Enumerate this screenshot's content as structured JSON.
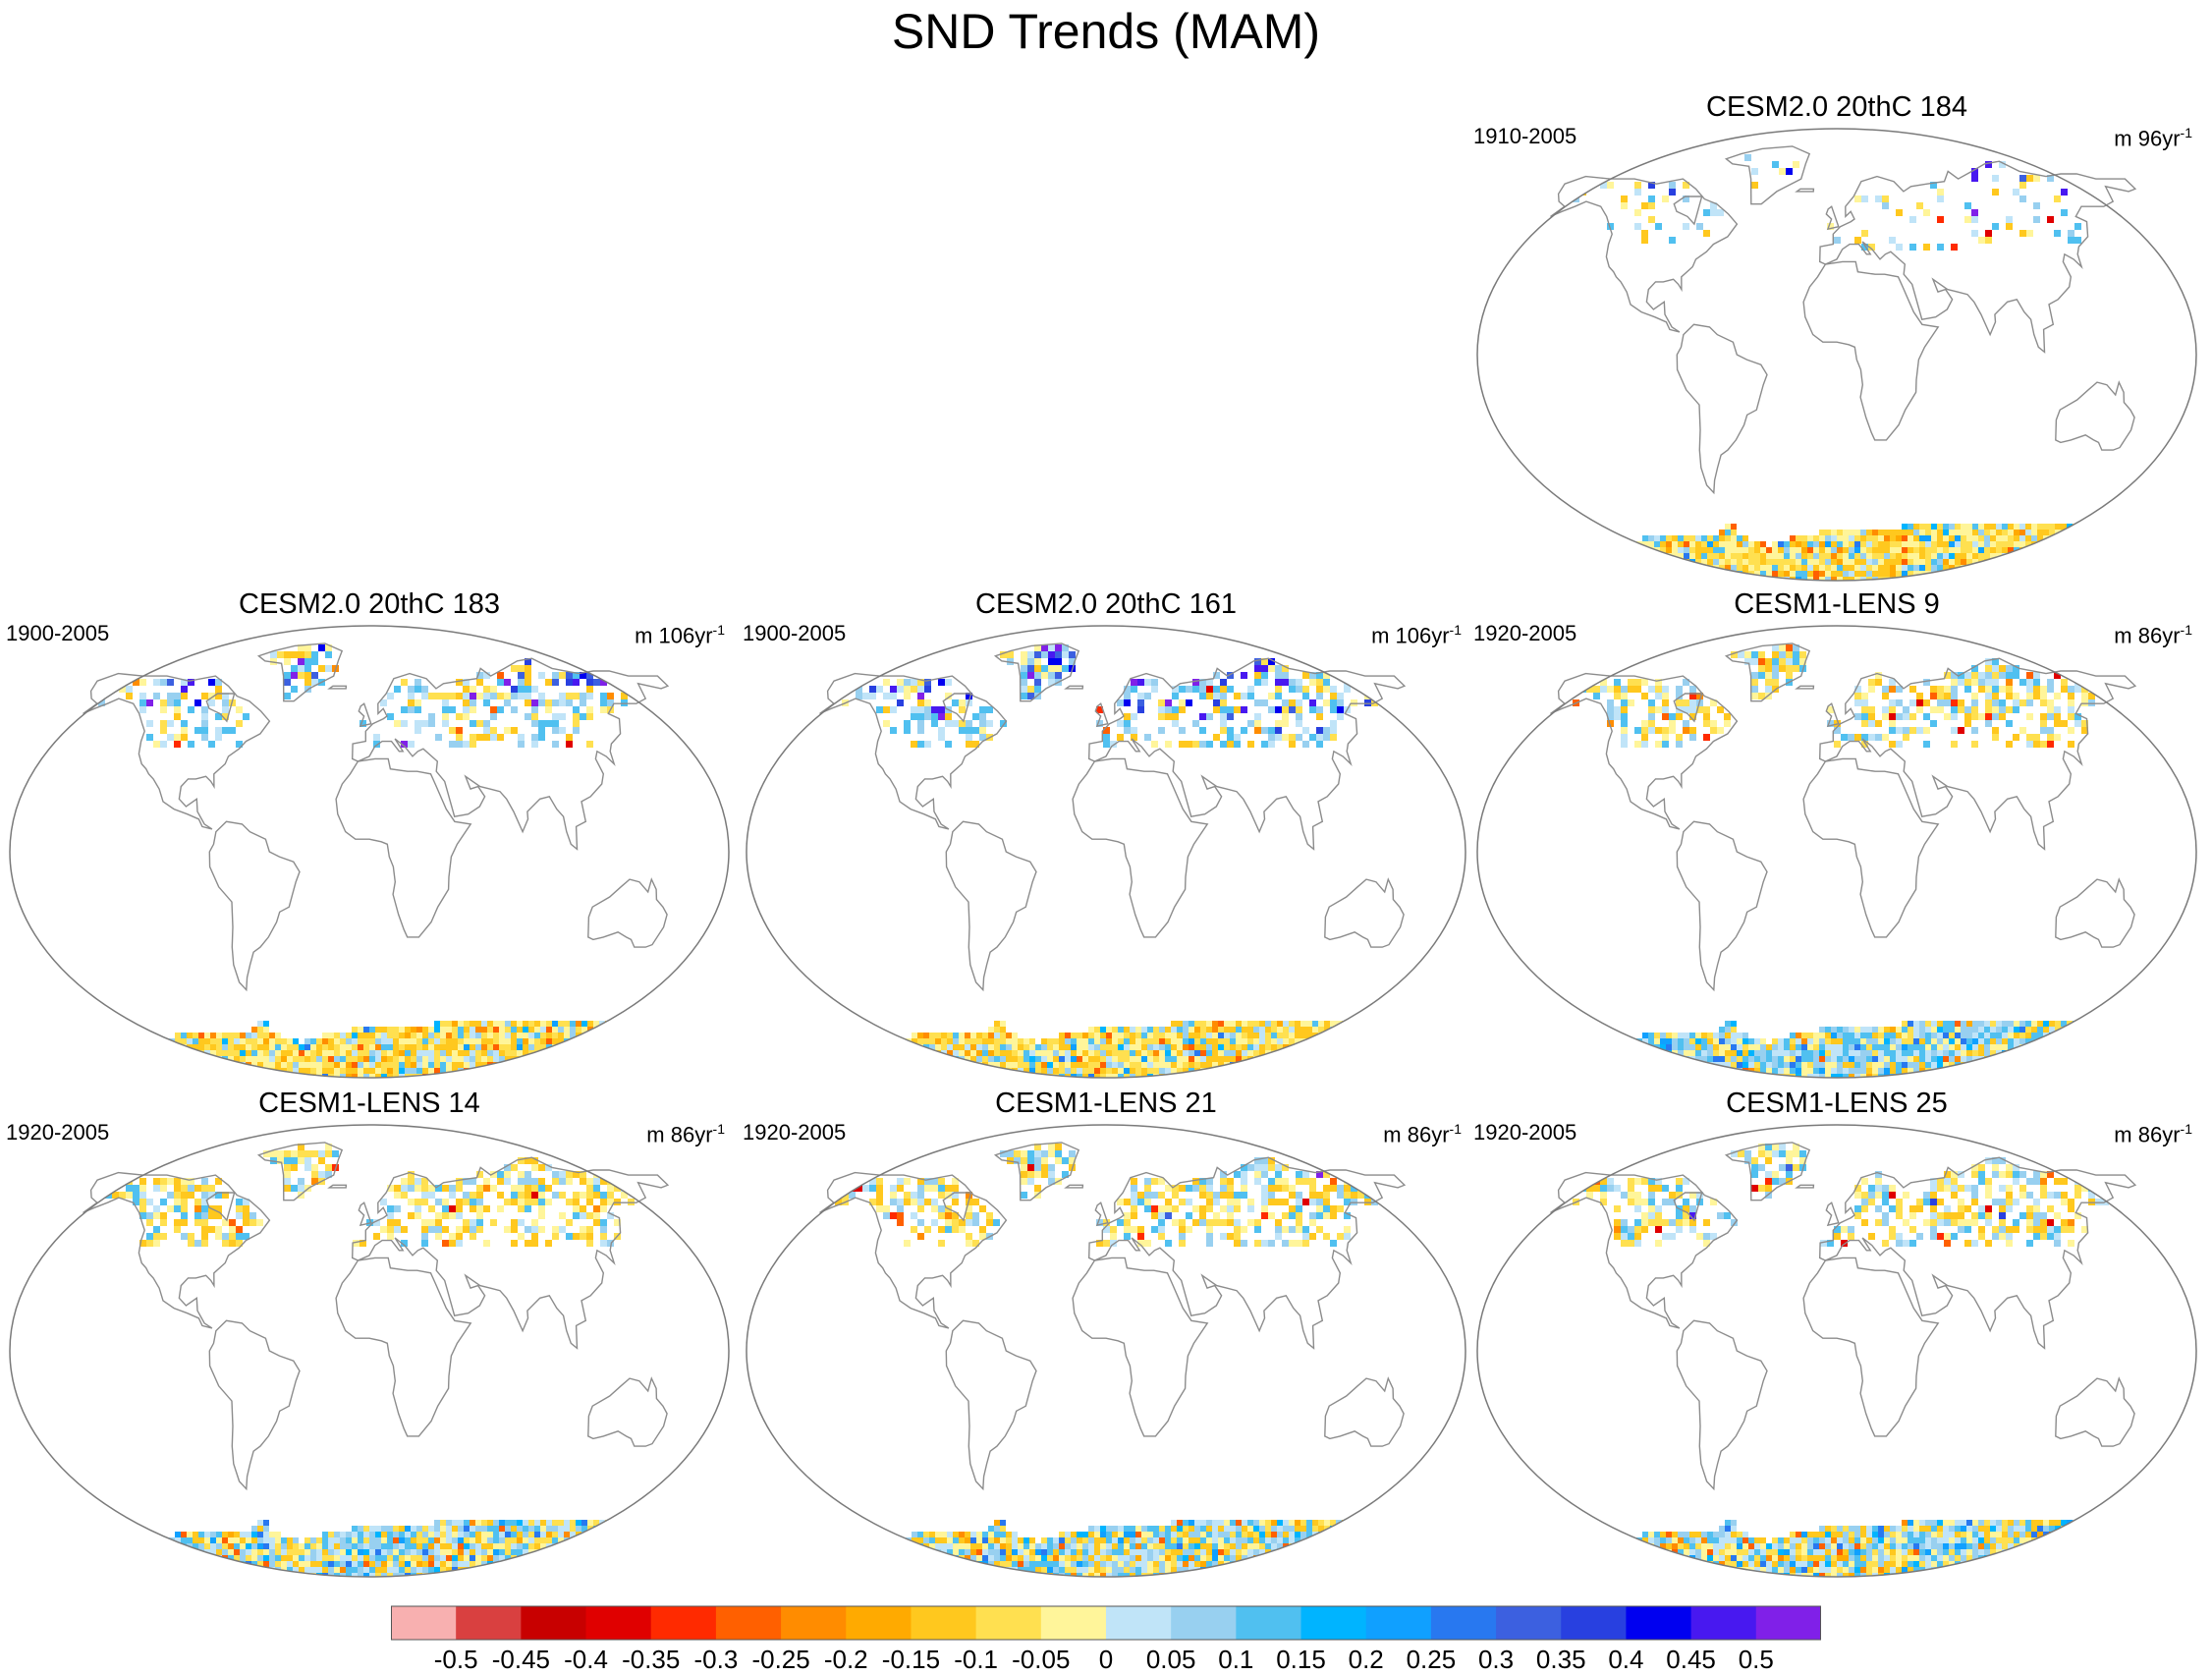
{
  "title": "SND Trends (MAM)",
  "colors": {
    "land_outline": "#8c8c8c",
    "frame": "#7a7a7a"
  },
  "panels": [
    {
      "id": "p184",
      "title": "CESM2.0 20thC 184",
      "period": "1910-2005",
      "units_prefix": "m 96yr",
      "units_exp": "-1",
      "pattern": {
        "nh_fill": 0.25,
        "nh_pos": 0.55,
        "nh_strong": 0.35,
        "ant_neg": 0.8
      }
    },
    {
      "id": "p183",
      "title": "CESM2.0 20thC 183",
      "period": "1900-2005",
      "units_prefix": "m 106yr",
      "units_exp": "-1",
      "pattern": {
        "nh_fill": 0.7,
        "nh_pos": 0.6,
        "nh_strong": 0.45,
        "ant_neg": 0.75
      }
    },
    {
      "id": "p161",
      "title": "CESM2.0 20thC 161",
      "period": "1900-2005",
      "units_prefix": "m 106yr",
      "units_exp": "-1",
      "pattern": {
        "nh_fill": 0.8,
        "nh_pos": 0.75,
        "nh_strong": 0.55,
        "ant_neg": 0.75
      }
    },
    {
      "id": "pL9",
      "title": "CESM1-LENS 9",
      "period": "1920-2005",
      "units_prefix": "m 86yr",
      "units_exp": "-1",
      "pattern": {
        "nh_fill": 0.85,
        "nh_pos": 0.45,
        "nh_strong": 0.05,
        "ant_neg": 0.35
      }
    },
    {
      "id": "pL14",
      "title": "CESM1-LENS 14",
      "period": "1920-2005",
      "units_prefix": "m 86yr",
      "units_exp": "-1",
      "pattern": {
        "nh_fill": 0.85,
        "nh_pos": 0.3,
        "nh_strong": 0.04,
        "ant_neg": 0.4
      }
    },
    {
      "id": "pL21",
      "title": "CESM1-LENS 21",
      "period": "1920-2005",
      "units_prefix": "m 86yr",
      "units_exp": "-1",
      "pattern": {
        "nh_fill": 0.85,
        "nh_pos": 0.4,
        "nh_strong": 0.03,
        "ant_neg": 0.45
      }
    },
    {
      "id": "pL25",
      "title": "CESM1-LENS 25",
      "period": "1920-2005",
      "units_prefix": "m 86yr",
      "units_exp": "-1",
      "pattern": {
        "nh_fill": 0.85,
        "nh_pos": 0.4,
        "nh_strong": 0.03,
        "ant_neg": 0.45
      }
    }
  ],
  "colorbar": {
    "labels": [
      "-0.5",
      "-0.45",
      "-0.4",
      "-0.35",
      "-0.3",
      "-0.25",
      "-0.2",
      "-0.15",
      "-0.1",
      "-0.05",
      "0",
      "0.05",
      "0.1",
      "0.15",
      "0.2",
      "0.25",
      "0.3",
      "0.35",
      "0.4",
      "0.45",
      "0.5"
    ],
    "colors": [
      "#f8b0b0",
      "#d94040",
      "#c80000",
      "#e00000",
      "#ff2a00",
      "#ff6000",
      "#ff8c00",
      "#ffaa00",
      "#ffc81e",
      "#ffe050",
      "#fff59a",
      "#c0e4f8",
      "#98d0f0",
      "#50c0f0",
      "#00b4ff",
      "#10a0ff",
      "#2878f0",
      "#3c60e0",
      "#2840e0",
      "#0000f0",
      "#4818f0",
      "#8020e8"
    ]
  }
}
